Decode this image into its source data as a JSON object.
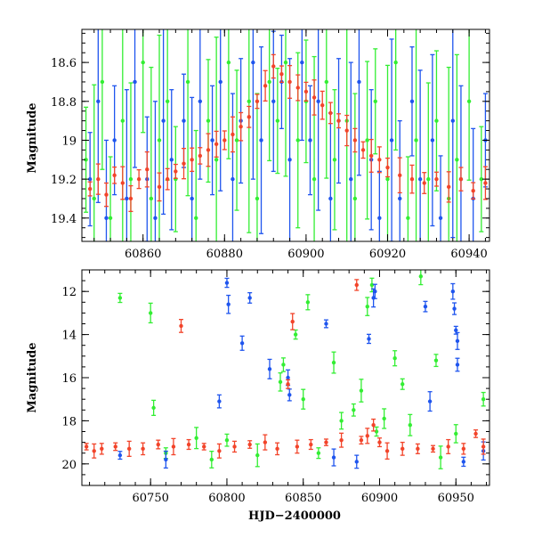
{
  "colors": {
    "green": "#33ee33",
    "blue": "#1f55ee",
    "red": "#f2442a"
  },
  "chart_data": [
    {
      "type": "scatter",
      "title": "",
      "xlabel": "",
      "ylabel": "Magnitude",
      "xlim": [
        60845,
        60945
      ],
      "ylim": [
        19.52,
        18.43
      ],
      "y_inverted": true,
      "xticks": [
        60860,
        60880,
        60900,
        60920,
        60940
      ],
      "yticks": [
        18.6,
        18.8,
        19,
        19.2,
        19.4
      ],
      "xtick_labels": [
        "60860",
        "60880",
        "60900",
        "60920",
        "60940"
      ],
      "ytick_labels": [
        "18.6",
        "18.8",
        "19",
        "19.2",
        "19.4"
      ],
      "series": [
        {
          "name": "green",
          "color": "#33ee33",
          "points": [
            [
              60846,
              19.1
            ],
            [
              60848,
              19.3
            ],
            [
              60850,
              18.7
            ],
            [
              60852,
              19.4
            ],
            [
              60855,
              18.9
            ],
            [
              60857,
              19.2
            ],
            [
              60860,
              18.6
            ],
            [
              60862,
              19.3
            ],
            [
              60864,
              19.0
            ],
            [
              60866,
              18.8
            ],
            [
              60868,
              19.2
            ],
            [
              60871,
              18.7
            ],
            [
              60873,
              19.4
            ],
            [
              60876,
              18.9
            ],
            [
              60878,
              19.1
            ],
            [
              60881,
              18.6
            ],
            [
              60883,
              19.0
            ],
            [
              60886,
              18.8
            ],
            [
              60888,
              19.3
            ],
            [
              60891,
              18.7
            ],
            [
              60893,
              18.9
            ],
            [
              60895,
              18.6
            ],
            [
              60898,
              19.0
            ],
            [
              60900,
              18.8
            ],
            [
              60902,
              19.2
            ],
            [
              60905,
              18.7
            ],
            [
              60907,
              19.1
            ],
            [
              60910,
              18.9
            ],
            [
              60912,
              19.3
            ],
            [
              60915,
              19.0
            ],
            [
              60917,
              18.8
            ],
            [
              60920,
              19.2
            ],
            [
              60922,
              18.6
            ],
            [
              60925,
              19.4
            ],
            [
              60927,
              19.0
            ],
            [
              60930,
              19.2
            ],
            [
              60932,
              18.9
            ],
            [
              60935,
              19.3
            ],
            [
              60937,
              19.1
            ],
            [
              60940,
              18.8
            ],
            [
              60943,
              19.2
            ]
          ]
        },
        {
          "name": "blue",
          "color": "#1f55ee",
          "points": [
            [
              60847,
              19.2
            ],
            [
              60849,
              18.8
            ],
            [
              60851,
              19.4
            ],
            [
              60853,
              19.0
            ],
            [
              60856,
              19.3
            ],
            [
              60858,
              18.7
            ],
            [
              60861,
              19.2
            ],
            [
              60863,
              19.4
            ],
            [
              60865,
              18.9
            ],
            [
              60867,
              19.1
            ],
            [
              60870,
              18.9
            ],
            [
              60872,
              19.3
            ],
            [
              60874,
              18.8
            ],
            [
              60877,
              19.0
            ],
            [
              60879,
              18.7
            ],
            [
              60882,
              19.2
            ],
            [
              60884,
              18.9
            ],
            [
              60887,
              18.6
            ],
            [
              60889,
              19.0
            ],
            [
              60892,
              18.8
            ],
            [
              60894,
              18.7
            ],
            [
              60896,
              19.1
            ],
            [
              60899,
              18.6
            ],
            [
              60901,
              19.0
            ],
            [
              60903,
              18.8
            ],
            [
              60906,
              19.3
            ],
            [
              60908,
              18.9
            ],
            [
              60911,
              19.2
            ],
            [
              60913,
              18.7
            ],
            [
              60916,
              19.1
            ],
            [
              60918,
              19.4
            ],
            [
              60921,
              19.0
            ],
            [
              60923,
              19.3
            ],
            [
              60926,
              18.8
            ],
            [
              60928,
              19.2
            ],
            [
              60931,
              19.0
            ],
            [
              60933,
              19.4
            ],
            [
              60936,
              18.9
            ],
            [
              60938,
              19.2
            ],
            [
              60941,
              19.3
            ],
            [
              60944,
              19.0
            ]
          ]
        },
        {
          "name": "red",
          "color": "#f2442a",
          "points": [
            [
              60847,
              19.25
            ],
            [
              60849,
              19.2
            ],
            [
              60851,
              19.28
            ],
            [
              60853,
              19.18
            ],
            [
              60855,
              19.22
            ],
            [
              60857,
              19.3
            ],
            [
              60859,
              19.2
            ],
            [
              60861,
              19.15
            ],
            [
              60864,
              19.24
            ],
            [
              60866,
              19.2
            ],
            [
              60868,
              19.16
            ],
            [
              60870,
              19.12
            ],
            [
              60872,
              19.1
            ],
            [
              60874,
              19.08
            ],
            [
              60876,
              19.05
            ],
            [
              60878,
              19.02
            ],
            [
              60880,
              19.0
            ],
            [
              60882,
              18.97
            ],
            [
              60884,
              18.93
            ],
            [
              60886,
              18.88
            ],
            [
              60888,
              18.8
            ],
            [
              60890,
              18.72
            ],
            [
              60892,
              18.62
            ],
            [
              60894,
              18.66
            ],
            [
              60896,
              18.7
            ],
            [
              60898,
              18.73
            ],
            [
              60900,
              18.75
            ],
            [
              60902,
              18.78
            ],
            [
              60904,
              18.82
            ],
            [
              60906,
              18.86
            ],
            [
              60908,
              18.9
            ],
            [
              60910,
              18.95
            ],
            [
              60912,
              19.0
            ],
            [
              60914,
              19.05
            ],
            [
              60916,
              19.08
            ],
            [
              60918,
              19.1
            ],
            [
              60920,
              19.14
            ],
            [
              60923,
              19.18
            ],
            [
              60926,
              19.2
            ],
            [
              60929,
              19.22
            ],
            [
              60932,
              19.2
            ],
            [
              60935,
              19.24
            ],
            [
              60938,
              19.2
            ],
            [
              60941,
              19.26
            ],
            [
              60944,
              19.22
            ]
          ]
        }
      ]
    },
    {
      "type": "scatter",
      "title": "",
      "xlabel": "HJD−2400000",
      "ylabel": "Magnitude",
      "xlim": [
        60705,
        60972
      ],
      "ylim": [
        21.0,
        11.0
      ],
      "y_inverted": true,
      "xticks": [
        60750,
        60800,
        60850,
        60900,
        60950
      ],
      "yticks": [
        12,
        14,
        16,
        18,
        20
      ],
      "xtick_labels": [
        "60750",
        "60800",
        "60850",
        "60900",
        "60950"
      ],
      "ytick_labels": [
        "12",
        "14",
        "16",
        "18",
        "20"
      ],
      "series": [
        {
          "name": "green",
          "color": "#33ee33",
          "points": [
            [
              60730,
              12.3
            ],
            [
              60750,
              13.0
            ],
            [
              60752,
              17.4
            ],
            [
              60760,
              19.5
            ],
            [
              60780,
              18.8
            ],
            [
              60790,
              19.8
            ],
            [
              60800,
              18.9
            ],
            [
              60820,
              19.6
            ],
            [
              60835,
              16.2
            ],
            [
              60837,
              15.4
            ],
            [
              60845,
              14.0
            ],
            [
              60850,
              17.0
            ],
            [
              60853,
              12.5
            ],
            [
              60860,
              19.5
            ],
            [
              60870,
              15.3
            ],
            [
              60875,
              18.0
            ],
            [
              60883,
              17.5
            ],
            [
              60888,
              16.6
            ],
            [
              60892,
              12.7
            ],
            [
              60895,
              11.7
            ],
            [
              60898,
              18.5
            ],
            [
              60903,
              17.9
            ],
            [
              60910,
              15.1
            ],
            [
              60915,
              16.3
            ],
            [
              60920,
              18.2
            ],
            [
              60927,
              11.3
            ],
            [
              60937,
              15.2
            ],
            [
              60940,
              19.7
            ],
            [
              60950,
              18.6
            ],
            [
              60968,
              17.0
            ]
          ]
        },
        {
          "name": "blue",
          "color": "#1f55ee",
          "points": [
            [
              60730,
              19.6
            ],
            [
              60760,
              19.8
            ],
            [
              60795,
              17.1
            ],
            [
              60800,
              11.6
            ],
            [
              60801,
              12.6
            ],
            [
              60810,
              14.4
            ],
            [
              60815,
              12.3
            ],
            [
              60828,
              15.6
            ],
            [
              60840,
              16.0
            ],
            [
              60841,
              16.8
            ],
            [
              60865,
              13.5
            ],
            [
              60870,
              19.7
            ],
            [
              60885,
              19.9
            ],
            [
              60893,
              14.2
            ],
            [
              60896,
              12.3
            ],
            [
              60897,
              12.0
            ],
            [
              60930,
              12.7
            ],
            [
              60933,
              17.1
            ],
            [
              60948,
              12.0
            ],
            [
              60949,
              12.8
            ],
            [
              60950,
              13.8
            ],
            [
              60951,
              14.3
            ],
            [
              60951,
              15.4
            ],
            [
              60955,
              19.9
            ],
            [
              60968,
              19.4
            ]
          ]
        },
        {
          "name": "red",
          "color": "#f2442a",
          "points": [
            [
              60708,
              19.2
            ],
            [
              60713,
              19.4
            ],
            [
              60718,
              19.3
            ],
            [
              60727,
              19.2
            ],
            [
              60736,
              19.3
            ],
            [
              60745,
              19.3
            ],
            [
              60755,
              19.1
            ],
            [
              60765,
              19.2
            ],
            [
              60770,
              13.6
            ],
            [
              60775,
              19.1
            ],
            [
              60785,
              19.2
            ],
            [
              60795,
              19.4
            ],
            [
              60805,
              19.2
            ],
            [
              60815,
              19.1
            ],
            [
              60825,
              19.0
            ],
            [
              60833,
              19.3
            ],
            [
              60840,
              16.3
            ],
            [
              60843,
              13.4
            ],
            [
              60846,
              19.2
            ],
            [
              60855,
              19.1
            ],
            [
              60865,
              19.0
            ],
            [
              60875,
              18.9
            ],
            [
              60885,
              11.7
            ],
            [
              60888,
              18.9
            ],
            [
              60892,
              18.7
            ],
            [
              60896,
              18.2
            ],
            [
              60900,
              19.0
            ],
            [
              60905,
              19.4
            ],
            [
              60915,
              19.3
            ],
            [
              60925,
              19.3
            ],
            [
              60935,
              19.3
            ],
            [
              60945,
              19.2
            ],
            [
              60955,
              19.3
            ],
            [
              60963,
              18.6
            ],
            [
              60968,
              19.2
            ]
          ]
        }
      ]
    }
  ]
}
